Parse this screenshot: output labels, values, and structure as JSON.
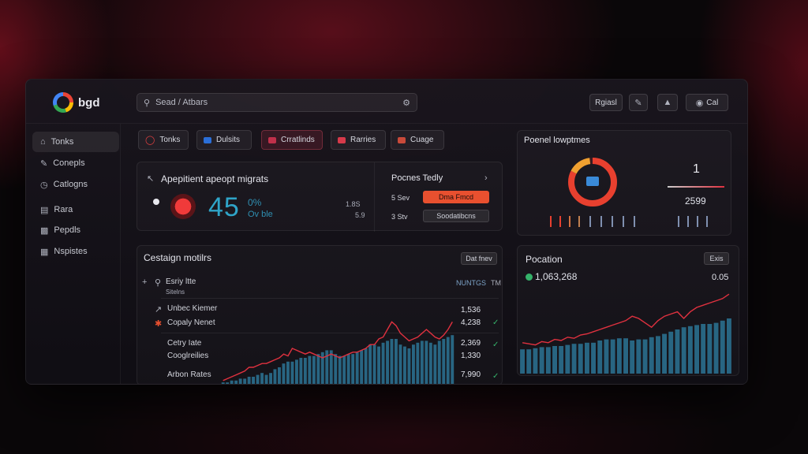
{
  "app": {
    "name": "bgd"
  },
  "search": {
    "placeholder": "Sead / Atbars"
  },
  "toolbar": {
    "btn1": "Rgiasl",
    "btn2": "Cal"
  },
  "sidebar": {
    "items": [
      {
        "label": "Tonks",
        "icon": "home-icon"
      },
      {
        "label": "Conepls",
        "icon": "pencil-icon"
      },
      {
        "label": "Catlogns",
        "icon": "clock-icon"
      },
      {
        "label": "Rara",
        "icon": "document-icon"
      },
      {
        "label": "Pepdls",
        "icon": "people-icon"
      },
      {
        "label": "Nspistes",
        "icon": "grid-icon"
      }
    ]
  },
  "filters": [
    {
      "label": "Tonks",
      "color": "#e04040"
    },
    {
      "label": "Dulsits",
      "color": "#2b6fd8"
    },
    {
      "label": "Crratlinds",
      "color": "#c0304a"
    },
    {
      "label": "Rarries",
      "color": "#d63a4a"
    },
    {
      "label": "Cuage",
      "color": "#c84a3a"
    }
  ],
  "kpi": {
    "title": "Apepitient apeopt migrats",
    "value": "45",
    "pct": "0%",
    "sub": "Ov ble",
    "side1": "1.8S",
    "side2": "5.9"
  },
  "report": {
    "title": "Pocnes Tedly",
    "row1_label": "5 Sev",
    "row1_button": "Dma Fmcd",
    "row2_label": "3 Stv",
    "row2_button": "Soodatibcns"
  },
  "panel": {
    "title": "Poenel lowptmes",
    "value": "1",
    "count": "2599"
  },
  "campaign": {
    "title": "Cestaign motilrs",
    "button": "Dat fnev",
    "header_label": "Esriy ltte",
    "header_sub": "Sitelns",
    "header_value": "NUNTGS",
    "header_extra": "TM",
    "rows": [
      {
        "label": "Unbec Kiemer",
        "value": "1,536"
      },
      {
        "label": "Copaly Nenet",
        "value": "4,238"
      },
      {
        "label": "Cetry Iate",
        "value": "2,369"
      },
      {
        "label": "Cooglreilies",
        "value": "1,330"
      },
      {
        "label": "Arbon Rates",
        "value": "7,990"
      }
    ]
  },
  "population": {
    "title": "Pocation",
    "button": "Exis",
    "value": "1,063,268",
    "change": "0.05"
  },
  "colors": {
    "accent": "#e8502f",
    "bar": "#2a6f8e",
    "line": "#e0313f",
    "positive": "#35b26a"
  },
  "chart_data": [
    {
      "type": "bar",
      "title": "Cestaign motilrs",
      "series": [
        {
          "values": [
            2,
            2,
            3,
            3,
            4,
            4,
            5,
            5,
            6,
            7,
            6,
            7,
            9,
            10,
            12,
            13,
            13,
            14,
            15,
            15,
            16,
            16,
            17,
            18,
            19,
            19,
            17,
            16,
            16,
            17,
            17,
            18,
            19,
            20,
            22,
            22,
            21,
            23,
            24,
            25,
            25,
            22,
            21,
            20,
            22,
            23,
            24,
            24,
            23,
            22,
            24,
            25,
            26,
            27
          ]
        },
        {
          "values": [
            3,
            4,
            5,
            6,
            7,
            8,
            10,
            10,
            11,
            12,
            12,
            13,
            14,
            15,
            17,
            16,
            20,
            19,
            18,
            17,
            18,
            17,
            16,
            15,
            16,
            17,
            16,
            15,
            16,
            17,
            18,
            18,
            19,
            20,
            22,
            22,
            25,
            26,
            30,
            34,
            32,
            28,
            26,
            24,
            25,
            26,
            28,
            30,
            28,
            26,
            25,
            27,
            30,
            34
          ]
        }
      ],
      "ylim": [
        0,
        40
      ]
    },
    {
      "type": "bar",
      "title": "Pocation",
      "series": [
        {
          "values": [
            22,
            22,
            23,
            24,
            24,
            25,
            25,
            26,
            27,
            27,
            28,
            28,
            30,
            31,
            31,
            32,
            32,
            30,
            31,
            31,
            33,
            34,
            36,
            38,
            40,
            42,
            43,
            44,
            45,
            45,
            46,
            48,
            50
          ]
        },
        {
          "values": [
            28,
            27,
            26,
            29,
            28,
            31,
            30,
            33,
            32,
            35,
            36,
            38,
            40,
            42,
            44,
            46,
            48,
            52,
            50,
            46,
            42,
            48,
            52,
            54,
            56,
            50,
            56,
            60,
            62,
            64,
            66,
            68,
            72
          ]
        }
      ],
      "ylim": [
        0,
        80
      ]
    }
  ]
}
